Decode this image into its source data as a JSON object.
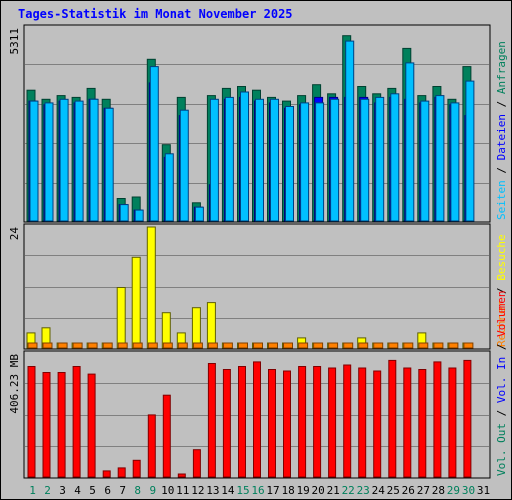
{
  "title": "Tages-Statistik im Monat November 2025",
  "chart_data": [
    {
      "type": "bar",
      "ylabel_top": "5311",
      "ylim": [
        0,
        5311
      ],
      "grid": true,
      "legend": [
        {
          "name": "Anfragen",
          "color": "#00805c"
        },
        {
          "name": "Dateien",
          "color": "#0000ff"
        },
        {
          "name": "Seiten",
          "color": "#00c0ff"
        }
      ],
      "legend_separator": " / ",
      "categories": [
        "1",
        "2",
        "3",
        "4",
        "5",
        "6",
        "7",
        "8",
        "9",
        "10",
        "11",
        "12",
        "13",
        "14",
        "15",
        "16",
        "17",
        "18",
        "19",
        "20",
        "21",
        "22",
        "23",
        "24",
        "25",
        "26",
        "27",
        "28",
        "29",
        "30"
      ],
      "series": [
        {
          "name": "Anfragen",
          "values": [
            3600,
            3350,
            3450,
            3400,
            3650,
            3350,
            620,
            660,
            4450,
            2100,
            3400,
            500,
            3450,
            3650,
            3700,
            3600,
            3400,
            3300,
            3450,
            3750,
            3500,
            5100,
            3700,
            3500,
            3650,
            4750,
            3450,
            3700,
            3350,
            4250
          ]
        },
        {
          "name": "Dateien",
          "values": [
            3300,
            3200,
            3300,
            3250,
            3350,
            3100,
            450,
            300,
            3800,
            1750,
            2900,
            380,
            1000,
            3350,
            3400,
            3300,
            3250,
            3100,
            3200,
            3400,
            3400,
            3400,
            3400,
            3250,
            3400,
            3350,
            3250,
            3400,
            3200,
            2900
          ]
        },
        {
          "name": "Seiten",
          "values": [
            3300,
            3250,
            3350,
            3300,
            3350,
            3100,
            450,
            300,
            4250,
            1850,
            3050,
            380,
            3350,
            3400,
            3550,
            3350,
            3350,
            3150,
            3250,
            3250,
            3350,
            4950,
            3350,
            3400,
            3500,
            4350,
            3300,
            3450,
            3250,
            3850
          ]
        }
      ]
    },
    {
      "type": "bar",
      "ylabel_top": "24",
      "ylim": [
        0,
        24
      ],
      "grid": true,
      "legend": [
        {
          "name": "Besuche",
          "color": "#ffff00"
        },
        {
          "name": "Rechner",
          "color": "#ff8000"
        }
      ],
      "legend_separator": " / ",
      "categories": [
        "1",
        "2",
        "3",
        "4",
        "5",
        "6",
        "7",
        "8",
        "9",
        "10",
        "11",
        "12",
        "13",
        "14",
        "15",
        "16",
        "17",
        "18",
        "19",
        "20",
        "21",
        "22",
        "23",
        "24",
        "25",
        "26",
        "27",
        "28",
        "29",
        "30"
      ],
      "series": [
        {
          "name": "Besuche",
          "values": [
            3,
            4,
            1,
            1,
            1,
            1,
            12,
            18,
            24,
            7,
            3,
            8,
            9,
            1,
            1,
            1,
            1,
            1,
            2,
            1,
            1,
            1,
            2,
            1,
            1,
            1,
            3,
            1,
            1,
            1
          ]
        },
        {
          "name": "Rechner",
          "values": [
            1,
            1,
            1,
            1,
            1,
            1,
            1,
            1,
            1,
            1,
            1,
            1,
            1,
            1,
            1,
            1,
            1,
            1,
            1,
            1,
            1,
            1,
            1,
            1,
            1,
            1,
            1,
            1,
            1,
            1
          ]
        }
      ]
    },
    {
      "type": "bar",
      "ylabel_top": "406.23 MB",
      "ylim": [
        0,
        406.23
      ],
      "grid": true,
      "legend": [
        {
          "name": "Volumen",
          "color": "#ff0000"
        },
        {
          "name": "Vol. In",
          "color": "#0000ff"
        },
        {
          "name": "Vol. Out",
          "color": "#00805c"
        }
      ],
      "legend_separator": " / ",
      "categories": [
        "1",
        "2",
        "3",
        "4",
        "5",
        "6",
        "7",
        "8",
        "9",
        "10",
        "11",
        "12",
        "13",
        "14",
        "15",
        "16",
        "17",
        "18",
        "19",
        "20",
        "21",
        "22",
        "23",
        "24",
        "25",
        "26",
        "27",
        "28",
        "29",
        "30"
      ],
      "series": [
        {
          "name": "Volumen",
          "values": [
            365,
            345,
            345,
            365,
            340,
            20,
            30,
            55,
            205,
            270,
            10,
            90,
            375,
            355,
            365,
            380,
            355,
            350,
            365,
            365,
            360,
            370,
            360,
            350,
            385,
            360,
            355,
            380,
            360,
            385
          ]
        }
      ]
    }
  ],
  "x_axis": {
    "days": [
      "1",
      "2",
      "3",
      "4",
      "5",
      "6",
      "7",
      "8",
      "9",
      "10",
      "11",
      "12",
      "13",
      "14",
      "15",
      "16",
      "17",
      "18",
      "19",
      "20",
      "21",
      "22",
      "23",
      "24",
      "25",
      "26",
      "27",
      "28",
      "29",
      "30",
      "31"
    ],
    "weekend_days": [
      "1",
      "2",
      "8",
      "9",
      "15",
      "16",
      "22",
      "23",
      "29",
      "30"
    ],
    "weekend_color": "#00805c",
    "weekday_color": "#000000"
  }
}
